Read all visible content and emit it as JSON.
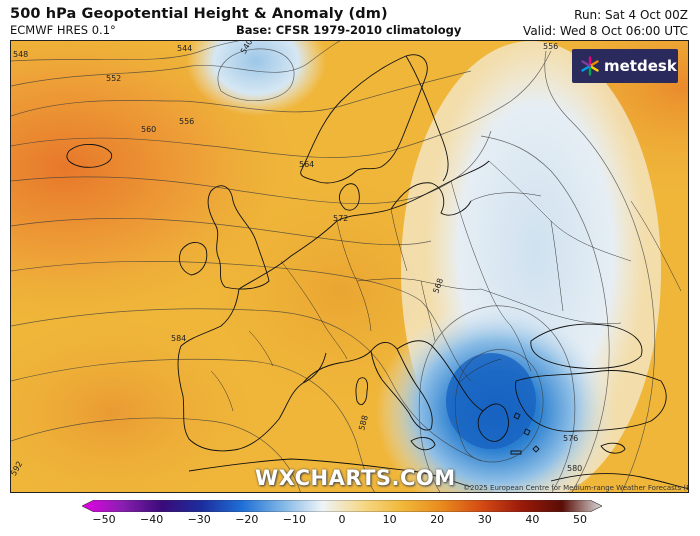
{
  "header": {
    "title": "500 hPa Geopotential Height & Anomaly (dm)",
    "model": "ECMWF HRES 0.1°",
    "base": "Base: CFSR 1979-2010 climatology",
    "run": "Run: Sat 4 Oct 00Z",
    "valid": "Valid: Wed 8 Oct 06:00 UTC"
  },
  "logo": {
    "text": "metdesk",
    "icon": "metdesk-star-icon"
  },
  "watermark": "WXCHARTS.COM",
  "copyright": "©2025 European Centre for Medium-range Weather Forecasts (ECMWF)",
  "contour_labels": [
    "548",
    "544",
    "540",
    "552",
    "556",
    "560",
    "564",
    "572",
    "568",
    "584",
    "592",
    "576",
    "580",
    "556",
    "588"
  ],
  "colorbar": {
    "ticks": [
      "−50",
      "−40",
      "−30",
      "−20",
      "−10",
      "0",
      "10",
      "20",
      "30",
      "40",
      "50"
    ],
    "colors": [
      "#e600e6",
      "#8a1fb0",
      "#3a0a7a",
      "#1c2e9e",
      "#1f6fd6",
      "#7fb6e6",
      "#eef3f7",
      "#f6d98a",
      "#f1b83a",
      "#e88a1e",
      "#d44a14",
      "#9a1a0a",
      "#5a0d06",
      "#d9d9d9"
    ],
    "ylim": [
      -50,
      50
    ]
  },
  "colors": {
    "warm": "#eeb236",
    "warm_deep": "#e9842a",
    "cool": "#cfe3f2",
    "cool_deep": "#1c6ec8"
  }
}
